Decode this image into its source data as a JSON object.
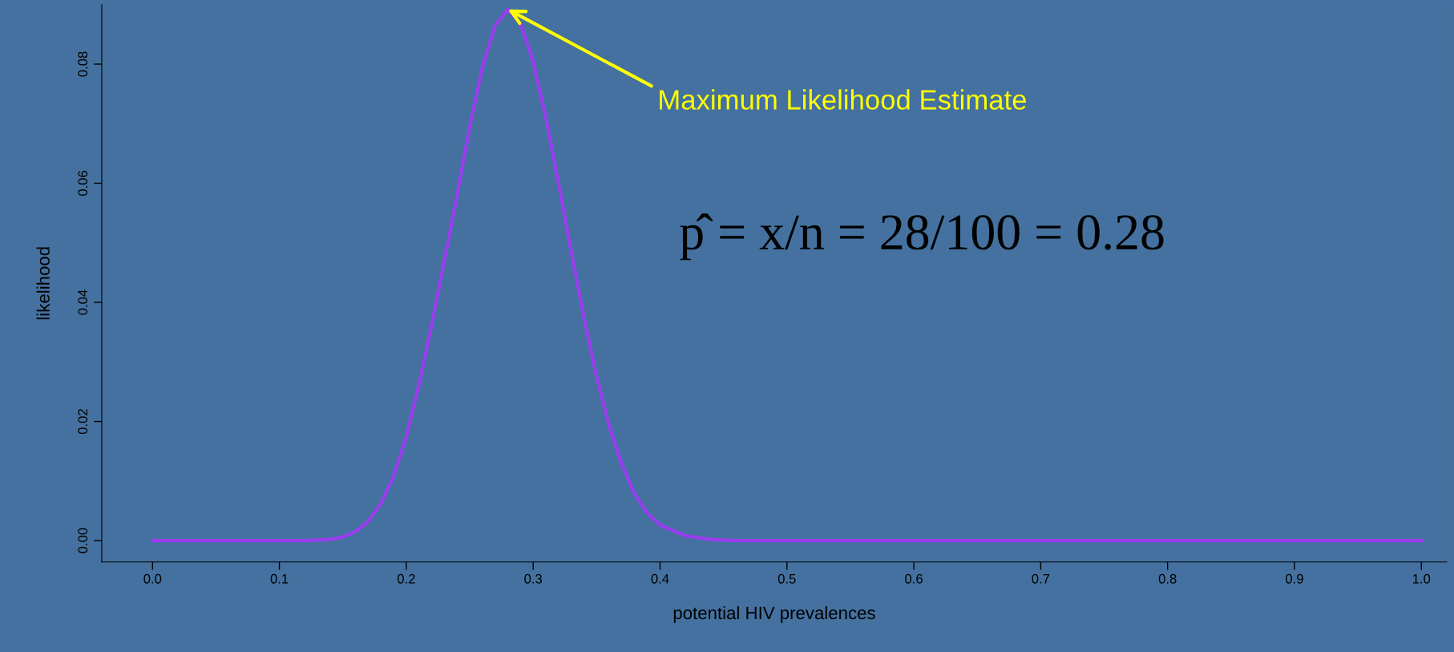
{
  "chart_data": {
    "type": "line",
    "xlabel": "potential HIV prevalences",
    "ylabel": "likelihood",
    "x": [
      0.0,
      0.05,
      0.1,
      0.12,
      0.14,
      0.15,
      0.16,
      0.17,
      0.18,
      0.19,
      0.2,
      0.21,
      0.22,
      0.23,
      0.24,
      0.25,
      0.26,
      0.27,
      0.28,
      0.29,
      0.3,
      0.31,
      0.32,
      0.33,
      0.34,
      0.35,
      0.36,
      0.37,
      0.38,
      0.39,
      0.4,
      0.42,
      0.44,
      0.46,
      0.5,
      0.6,
      0.7,
      0.8,
      0.9,
      1.0
    ],
    "series": [
      {
        "color": "#9b3cf0",
        "values": [
          0.0,
          0.0,
          0.0,
          0.0,
          0.0002,
          0.0006,
          0.0015,
          0.0032,
          0.0062,
          0.0108,
          0.0174,
          0.0262,
          0.0362,
          0.047,
          0.058,
          0.0695,
          0.0795,
          0.0865,
          0.0892,
          0.0868,
          0.0804,
          0.071,
          0.06,
          0.0485,
          0.0375,
          0.0275,
          0.0192,
          0.0127,
          0.0078,
          0.0046,
          0.0026,
          0.0008,
          0.0002,
          0.0,
          0.0,
          0.0,
          0.0,
          0.0,
          0.0,
          0.0
        ]
      }
    ],
    "xlim": [
      -0.04,
      1.02
    ],
    "ylim": [
      -0.0036,
      0.09
    ],
    "xticks": [
      {
        "value": 0,
        "label": "0.0"
      },
      0.1,
      0.2,
      0.3,
      0.4,
      0.5,
      0.6,
      0.7,
      0.8,
      0.9,
      {
        "value": 1,
        "label": "1.0"
      }
    ],
    "yticks": [
      {
        "value": 0,
        "label": "0.00"
      },
      0.02,
      0.04,
      0.06,
      0.08
    ],
    "grid": false,
    "legend": false,
    "marker": "none",
    "line_style": "solid",
    "annotations": [
      {
        "text": "Maximum Likelihood Estimate",
        "x": 0.28,
        "y": 0.0892
      },
      "p̂ = x/n = 28/100 = 0.28"
    ]
  }
}
